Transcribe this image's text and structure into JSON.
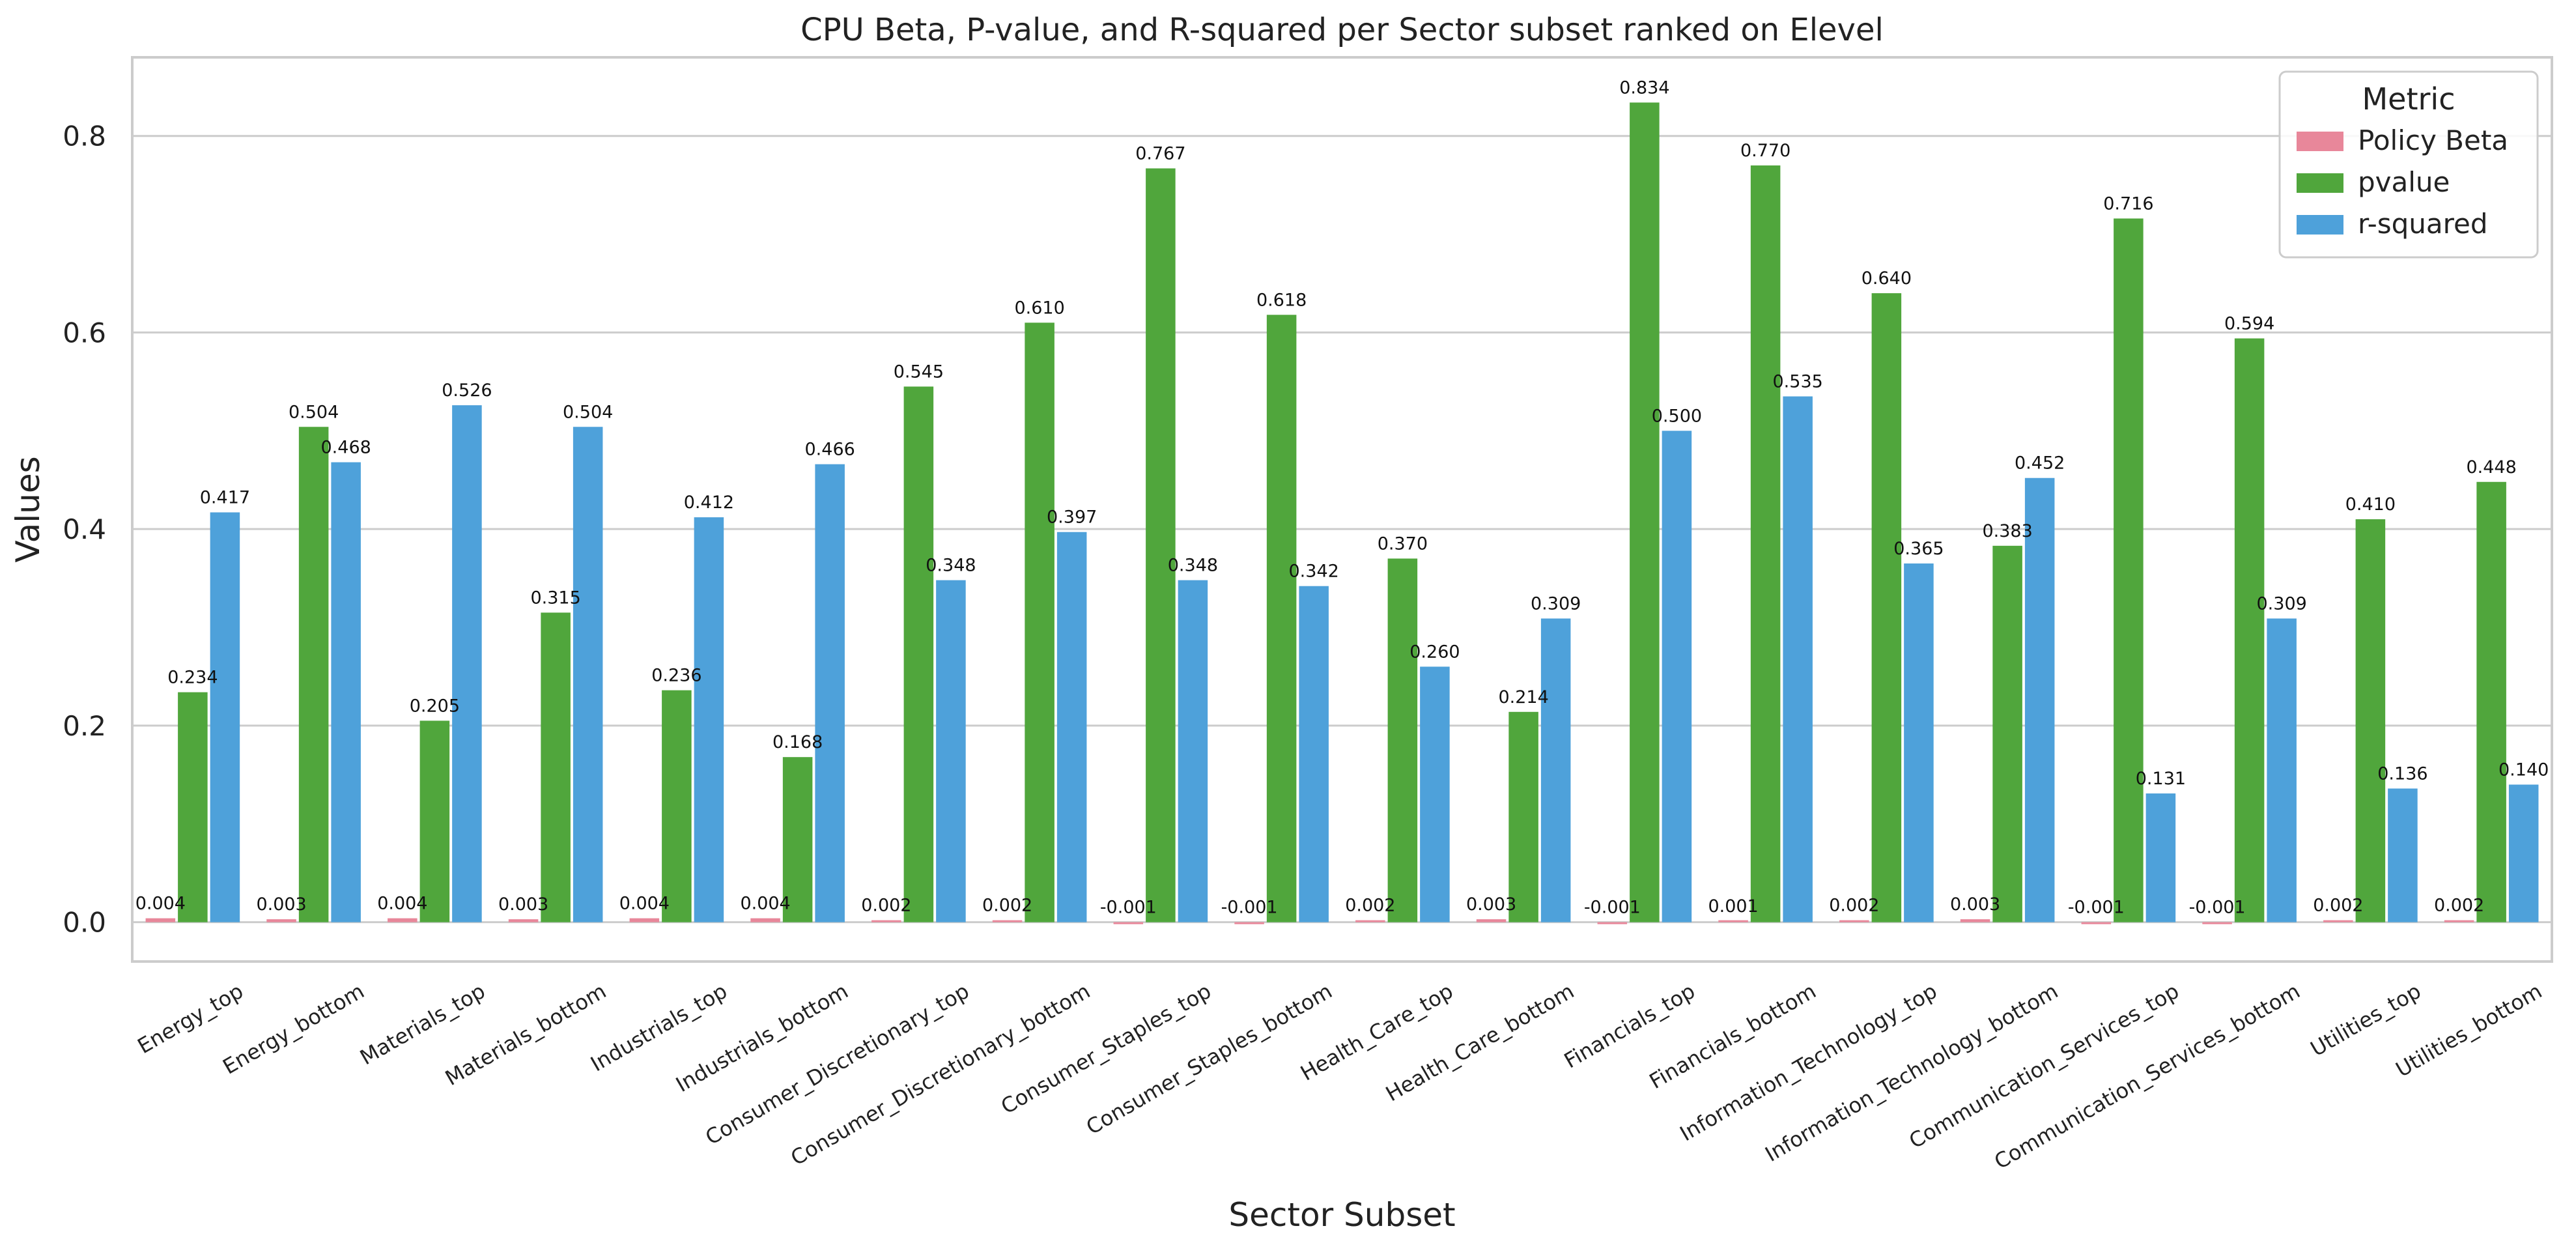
{
  "chart_data": {
    "type": "bar",
    "title": "CPU Beta, P-value, and R-squared per Sector subset ranked on Elevel",
    "xlabel": "Sector Subset",
    "ylabel": "Values",
    "ylim": [
      -0.04,
      0.88
    ],
    "yticks": [
      0.0,
      0.2,
      0.4,
      0.6,
      0.8
    ],
    "ytick_labels": [
      "0.0",
      "0.2",
      "0.4",
      "0.6",
      "0.8"
    ],
    "grid": "horizontal",
    "categories": [
      "Energy_top",
      "Energy_bottom",
      "Materials_top",
      "Materials_bottom",
      "Industrials_top",
      "Industrials_bottom",
      "Consumer_Discretionary_top",
      "Consumer_Discretionary_bottom",
      "Consumer_Staples_top",
      "Consumer_Staples_bottom",
      "Health_Care_top",
      "Health_Care_bottom",
      "Financials_top",
      "Financials_bottom",
      "Information_Technology_top",
      "Information_Technology_bottom",
      "Communication_Services_top",
      "Communication_Services_bottom",
      "Utilities_top",
      "Utilities_bottom"
    ],
    "legend": {
      "title": "Metric",
      "position": "top-right"
    },
    "series": [
      {
        "name": "Policy Beta",
        "color": "#e8879a",
        "values": [
          0.004,
          0.003,
          0.004,
          0.003,
          0.004,
          0.004,
          0.002,
          0.002,
          -0.001,
          -0.001,
          0.002,
          0.003,
          -0.001,
          0.001,
          0.002,
          0.003,
          -0.001,
          -0.001,
          0.002,
          0.002
        ],
        "labels": [
          "0.004",
          "0.003",
          "0.004",
          "0.003",
          "0.004",
          "0.004",
          "0.002",
          "0.002",
          "-0.001",
          "-0.001",
          "0.002",
          "0.003",
          "-0.001",
          "0.001",
          "0.002",
          "0.003",
          "-0.001",
          "-0.001",
          "0.002",
          "0.002"
        ]
      },
      {
        "name": "pvalue",
        "color": "#50a63c",
        "values": [
          0.234,
          0.504,
          0.205,
          0.315,
          0.236,
          0.168,
          0.545,
          0.61,
          0.767,
          0.618,
          0.37,
          0.214,
          0.834,
          0.77,
          0.64,
          0.383,
          0.716,
          0.594,
          0.41,
          0.448
        ],
        "labels": [
          "0.234",
          "0.504",
          "0.205",
          "0.315",
          "0.236",
          "0.168",
          "0.545",
          "0.610",
          "0.767",
          "0.618",
          "0.370",
          "0.214",
          "0.834",
          "0.770",
          "0.640",
          "0.383",
          "0.716",
          "0.594",
          "0.410",
          "0.448"
        ]
      },
      {
        "name": "r-squared",
        "color": "#4ea1da",
        "values": [
          0.417,
          0.468,
          0.526,
          0.504,
          0.412,
          0.466,
          0.348,
          0.397,
          0.348,
          0.342,
          0.26,
          0.309,
          0.5,
          0.535,
          0.365,
          0.452,
          0.131,
          0.309,
          0.136,
          0.14
        ],
        "labels": [
          "0.417",
          "0.468",
          "0.526",
          "0.504",
          "0.412",
          "0.466",
          "0.348",
          "0.397",
          "0.348",
          "0.342",
          "0.260",
          "0.309",
          "0.500",
          "0.535",
          "0.365",
          "0.452",
          "0.131",
          "0.309",
          "0.136",
          "0.140"
        ]
      }
    ]
  }
}
